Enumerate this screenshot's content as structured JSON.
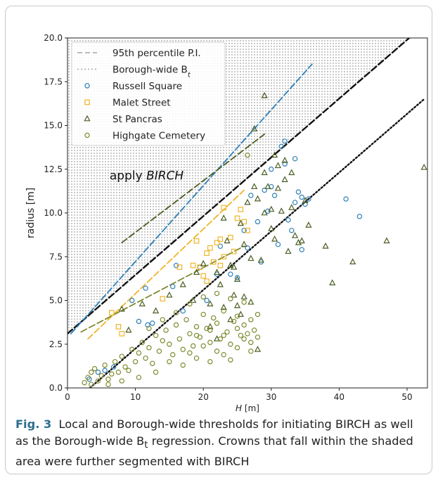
{
  "caption": {
    "label": "Fig. 3",
    "line1": "Local and Borough-wide thresholds for initiating BIRCH as well",
    "line2": "as the Borough-wide B",
    "line2_sub": "t",
    "line2_rest": " regression. Crowns that fall within the shaded",
    "line3": "area were further segmented with BIRCH"
  },
  "chart_data": {
    "type": "scatter",
    "xlabel": "H [m]",
    "ylabel": "radius [m]",
    "xlim": [
      0,
      53
    ],
    "ylim": [
      0,
      20
    ],
    "xticks": [
      "0",
      "10",
      "20",
      "30",
      "40",
      "50"
    ],
    "yticks": [
      "0.0",
      "2.5",
      "5.0",
      "7.5",
      "10.0",
      "12.5",
      "15.0",
      "17.5",
      "20.0"
    ],
    "annotation": "apply BIRCH",
    "legend_position": "top-left",
    "legend": [
      {
        "label": "95th percentile P.I.",
        "style": "dashed-line",
        "color": "#bbbbbb"
      },
      {
        "label": "Borough-wide B",
        "sub": "t",
        "style": "dotted-line",
        "color": "#bbbbbb"
      },
      {
        "label": "Russell Square",
        "marker": "circle",
        "color": "#2e7fb8"
      },
      {
        "label": "Malet Street",
        "marker": "square",
        "color": "#f0b429"
      },
      {
        "label": "St Pancras",
        "marker": "triangle",
        "color": "#4a5d23"
      },
      {
        "label": "Highgate Cemetery",
        "marker": "circle",
        "color": "#7f8a2e"
      }
    ],
    "lines": [
      {
        "kind": "borough-pi",
        "style": "dashed",
        "color": "#111111",
        "x": [
          0,
          53
        ],
        "y": [
          3.1,
          20.9
        ]
      },
      {
        "kind": "borough-bt",
        "style": "dotted",
        "color": "#111111",
        "x": [
          3.3,
          52.5
        ],
        "y": [
          0,
          16.5
        ]
      },
      {
        "kind": "russell-pi",
        "style": "dashed",
        "color": "#2e7fb8",
        "x": [
          0.5,
          36
        ],
        "y": [
          3.1,
          18.5
        ]
      },
      {
        "kind": "malet-pi",
        "style": "dashed",
        "color": "#f0b429",
        "x": [
          3,
          26
        ],
        "y": [
          2.8,
          11.3
        ]
      },
      {
        "kind": "stpancras-pi",
        "style": "dashed",
        "color": "#4a5d23",
        "x": [
          8,
          29
        ],
        "y": [
          8.3,
          14.5
        ]
      },
      {
        "kind": "highgate-pi",
        "style": "dashed",
        "color": "#7f8a2e",
        "x": [
          2,
          26
        ],
        "y": [
          3.2,
          8.1
        ]
      }
    ],
    "shaded_region": {
      "description": "area above Borough-wide 95th percentile P.I. line",
      "pattern": "dotted"
    },
    "series": [
      {
        "name": "Russell Square",
        "marker": "circle",
        "color": "#2e7fb8",
        "points": [
          [
            3.2,
            0.5
          ],
          [
            4.5,
            0.9
          ],
          [
            5.5,
            1.0
          ],
          [
            6.8,
            1.2
          ],
          [
            9.5,
            5.0
          ],
          [
            10.5,
            3.8
          ],
          [
            11.5,
            5.7
          ],
          [
            11.8,
            3.6
          ],
          [
            12.5,
            3.7
          ],
          [
            15.5,
            5.8
          ],
          [
            16,
            7.0
          ],
          [
            17,
            4.4
          ],
          [
            19.5,
            6.9
          ],
          [
            20.5,
            5.0
          ],
          [
            22,
            6.5
          ],
          [
            22.5,
            8.1
          ],
          [
            24,
            6.5
          ],
          [
            25,
            6.3
          ],
          [
            26,
            9.0
          ],
          [
            26.5,
            8.0
          ],
          [
            27,
            11.0
          ],
          [
            28,
            9.5
          ],
          [
            28.5,
            7.2
          ],
          [
            29,
            11.3
          ],
          [
            29.5,
            10.1
          ],
          [
            30,
            11.5
          ],
          [
            30,
            12.5
          ],
          [
            30.5,
            11.0
          ],
          [
            31,
            8.2
          ],
          [
            31.5,
            13.8
          ],
          [
            32,
            14.1
          ],
          [
            32,
            12.8
          ],
          [
            32.5,
            9.6
          ],
          [
            33,
            9.0
          ],
          [
            33.5,
            13.1
          ],
          [
            33.5,
            10.6
          ],
          [
            34,
            11.2
          ],
          [
            34.5,
            10.9
          ],
          [
            34.5,
            7.9
          ],
          [
            35,
            10.5
          ],
          [
            35.5,
            10.8
          ],
          [
            41,
            10.8
          ],
          [
            43,
            9.8
          ]
        ]
      },
      {
        "name": "Malet Street",
        "marker": "square",
        "color": "#f0b429",
        "points": [
          [
            6.5,
            4.3
          ],
          [
            7.5,
            3.5
          ],
          [
            8,
            3.1
          ],
          [
            14,
            5.1
          ],
          [
            16.5,
            6.9
          ],
          [
            18.5,
            7.0
          ],
          [
            19,
            8.4
          ],
          [
            19.5,
            6.9
          ],
          [
            20,
            6.4
          ],
          [
            20.5,
            6.1
          ],
          [
            20.5,
            7.7
          ],
          [
            21,
            8.0
          ],
          [
            21.5,
            7.2
          ],
          [
            22,
            8.3
          ],
          [
            22.5,
            7.0
          ],
          [
            22.5,
            8.5
          ],
          [
            23,
            7.5
          ],
          [
            23,
            10.3
          ],
          [
            24,
            8.6
          ],
          [
            24.5,
            7.8
          ],
          [
            25,
            9.7
          ],
          [
            25.5,
            10.2
          ],
          [
            26,
            9.5
          ],
          [
            26.5,
            9.0
          ]
        ]
      },
      {
        "name": "St Pancras",
        "marker": "triangle",
        "color": "#4a5d23",
        "points": [
          [
            8,
            4.5
          ],
          [
            9,
            3.3
          ],
          [
            11,
            4.8
          ],
          [
            13,
            4.4
          ],
          [
            15,
            5.3
          ],
          [
            17,
            5.9
          ],
          [
            18.5,
            5.0
          ],
          [
            19,
            6.6
          ],
          [
            20,
            7.1
          ],
          [
            21,
            4.8
          ],
          [
            22,
            6.6
          ],
          [
            22.5,
            5.9
          ],
          [
            23,
            9.7
          ],
          [
            23.5,
            8.4
          ],
          [
            24,
            7.0
          ],
          [
            24.5,
            6.9
          ],
          [
            25,
            6.2
          ],
          [
            25.5,
            9.4
          ],
          [
            26,
            8.2
          ],
          [
            26.5,
            10.6
          ],
          [
            27,
            7.4
          ],
          [
            27.5,
            11.5
          ],
          [
            27.5,
            14.8
          ],
          [
            28,
            10.8
          ],
          [
            28,
            2.2
          ],
          [
            28.5,
            7.3
          ],
          [
            29,
            16.7
          ],
          [
            29,
            12.3
          ],
          [
            29,
            10.0
          ],
          [
            29.5,
            11.5
          ],
          [
            30,
            9.1
          ],
          [
            30,
            10.2
          ],
          [
            30.5,
            13.3
          ],
          [
            30.5,
            8.5
          ],
          [
            31,
            12.7
          ],
          [
            31,
            11.4
          ],
          [
            31.5,
            10.1
          ],
          [
            32,
            13.0
          ],
          [
            32,
            11.9
          ],
          [
            32.5,
            7.8
          ],
          [
            33,
            10.3
          ],
          [
            33,
            12.3
          ],
          [
            33.5,
            8.7
          ],
          [
            34,
            8.3
          ],
          [
            34.5,
            8.4
          ],
          [
            35,
            10.7
          ],
          [
            35.5,
            9.3
          ],
          [
            38,
            8.1
          ],
          [
            39,
            6.0
          ],
          [
            42,
            7.2
          ],
          [
            47,
            8.4
          ],
          [
            52.5,
            12.6
          ],
          [
            21,
            3.5
          ],
          [
            22,
            2.8
          ],
          [
            23,
            4.6
          ],
          [
            24,
            3.9
          ],
          [
            25,
            4.7
          ],
          [
            26,
            5.2
          ],
          [
            27,
            4.9
          ],
          [
            25.5,
            4.2
          ],
          [
            24.5,
            5.3
          ]
        ]
      },
      {
        "name": "Highgate Cemetery",
        "marker": "circle",
        "color": "#7f8a2e",
        "points": [
          [
            2.5,
            0.3
          ],
          [
            3,
            0.6
          ],
          [
            3.5,
            0.9
          ],
          [
            4,
            1.1
          ],
          [
            4.5,
            0.4
          ],
          [
            5,
            0.7
          ],
          [
            5.5,
            1.3
          ],
          [
            6,
            0.5
          ],
          [
            6.5,
            0.8
          ],
          [
            7,
            1.5
          ],
          [
            7.5,
            0.9
          ],
          [
            8,
            1.8
          ],
          [
            8.5,
            1.2
          ],
          [
            9,
            1.0
          ],
          [
            9.5,
            2.2
          ],
          [
            10,
            1.5
          ],
          [
            10.5,
            2.0
          ],
          [
            11,
            2.6
          ],
          [
            11.5,
            1.7
          ],
          [
            12,
            2.3
          ],
          [
            12.5,
            1.4
          ],
          [
            13,
            3.0
          ],
          [
            13.5,
            2.1
          ],
          [
            14,
            2.7
          ],
          [
            14.5,
            3.3
          ],
          [
            15,
            2.5
          ],
          [
            15.5,
            1.9
          ],
          [
            16,
            3.6
          ],
          [
            16.5,
            2.8
          ],
          [
            17,
            2.2
          ],
          [
            17.5,
            3.9
          ],
          [
            18,
            3.1
          ],
          [
            18.5,
            2.4
          ],
          [
            19,
            3.5
          ],
          [
            19.5,
            2.9
          ],
          [
            20,
            4.2
          ],
          [
            20.5,
            3.4
          ],
          [
            21,
            2.6
          ],
          [
            21.5,
            4.0
          ],
          [
            22,
            3.7
          ],
          [
            22.5,
            2.8
          ],
          [
            23,
            4.4
          ],
          [
            23.5,
            3.2
          ],
          [
            24,
            2.5
          ],
          [
            24.5,
            3.8
          ],
          [
            25,
            4.1
          ],
          [
            25.5,
            3.0
          ],
          [
            26,
            3.6
          ],
          [
            26.5,
            3.1
          ],
          [
            27,
            3.9
          ],
          [
            27.5,
            3.3
          ],
          [
            28,
            4.2
          ],
          [
            13,
            0.9
          ],
          [
            15,
            1.5
          ],
          [
            17,
            1.3
          ],
          [
            19,
            1.7
          ],
          [
            21,
            1.5
          ],
          [
            23,
            1.9
          ],
          [
            25,
            2.3
          ],
          [
            27,
            2.1
          ],
          [
            22,
            5.4
          ],
          [
            24,
            5.1
          ],
          [
            26,
            4.9
          ],
          [
            20,
            5.2
          ],
          [
            18,
            4.8
          ],
          [
            16,
            4.3
          ],
          [
            14,
            3.9
          ],
          [
            12,
            3.4
          ],
          [
            18,
            2.0
          ],
          [
            20,
            2.4
          ],
          [
            22,
            2.1
          ],
          [
            24,
            1.6
          ],
          [
            26,
            2.8
          ],
          [
            28,
            2.9
          ],
          [
            26.5,
            13.3
          ],
          [
            10.5,
            0.6
          ],
          [
            8,
            0.4
          ],
          [
            6,
            0.2
          ],
          [
            3.5,
            0.2
          ],
          [
            19,
            3.0
          ],
          [
            21,
            3.3
          ],
          [
            23,
            3.0
          ],
          [
            25,
            3.4
          ],
          [
            27,
            2.6
          ]
        ]
      }
    ]
  }
}
